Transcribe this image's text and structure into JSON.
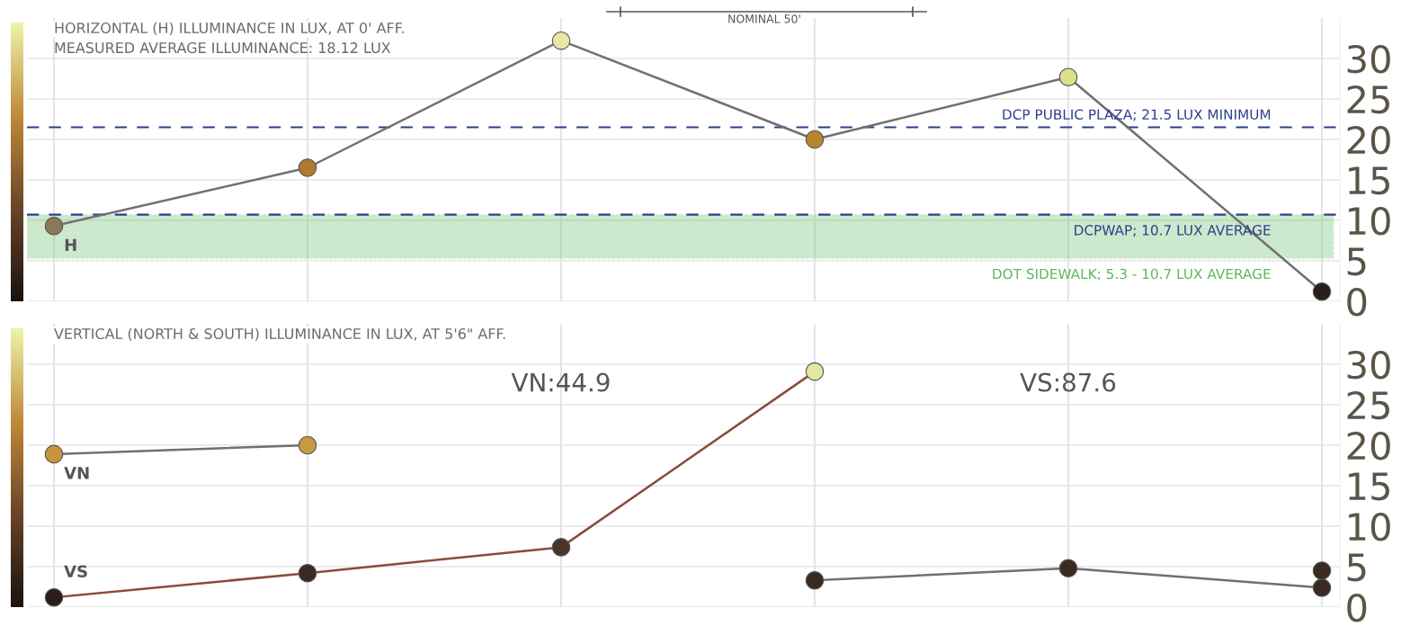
{
  "chart_data": [
    {
      "type": "line",
      "title": "HORIZONTAL (H) ILLUMINANCE IN LUX, AT 0' AFF.",
      "subtitle": "MEASURED AVERAGE ILLUMINANCE: 18.12 LUX",
      "categories": [
        null,
        null,
        null,
        null,
        null,
        null
      ],
      "series": [
        {
          "name": "H",
          "color": "#707070",
          "colors": [
            "#8a7a5a",
            "#b07a30",
            "#e4e8a0",
            "#b8862e",
            "#dde08a",
            "#2a1f1a"
          ],
          "values": [
            9.3,
            16.5,
            32.2,
            20.0,
            27.7,
            1.2
          ]
        }
      ],
      "ylim": [
        0,
        35
      ],
      "yticks": [
        0,
        5,
        10,
        15,
        20,
        25,
        30
      ],
      "grid": true,
      "marker": "circle",
      "line_style": "solid",
      "tick_labels": "y",
      "ref_lines": [
        {
          "axis": "y",
          "value": 21.5,
          "label": "DCP PUBLIC PLAZA; 21.5 LUX MINIMUM",
          "color": "#2b3f8c",
          "line_style": "dashed"
        },
        {
          "axis": "y",
          "value": 10.7,
          "label": "DCPWAP; 10.7 LUX AVERAGE",
          "color": "#2b3f8c",
          "line_style": "dashed"
        }
      ],
      "bands": [
        {
          "axis": "y",
          "from": 5.3,
          "to": 10.7,
          "label": "DOT SIDEWALK; 5.3 - 10.7 LUX AVERAGE",
          "color": "#5cb85c"
        }
      ],
      "annotations": [
        "NOMINAL 50'"
      ]
    },
    {
      "type": "line",
      "title": "VERTICAL (NORTH & SOUTH) ILLUMINANCE IN LUX, AT 5'6\" AFF.",
      "categories": [
        null,
        null,
        null,
        null,
        null,
        null
      ],
      "series": [
        {
          "name": "VN",
          "color": "#707070",
          "colors": [
            "#c8963a",
            "#c89a40",
            null,
            "#3a2a22",
            "#3a2a22",
            "#3a2a22"
          ],
          "values": [
            18.9,
            20.0,
            null,
            3.3,
            4.8,
            2.4
          ]
        },
        {
          "name": "VS",
          "color": "#8b4a3c",
          "colors": [
            "#2a1e1a",
            "#3a2a22",
            "#4a3428",
            "#e4e8a0",
            null,
            "#3a2a22"
          ],
          "values": [
            1.2,
            4.2,
            7.4,
            29.1,
            null,
            4.5
          ]
        }
      ],
      "ylim": [
        0,
        35
      ],
      "yticks": [
        0,
        5,
        10,
        15,
        20,
        25,
        30
      ],
      "grid": true,
      "marker": "circle",
      "line_style": "solid",
      "tick_labels": "y",
      "annotations": [
        "VN:44.9",
        "VS:87.6"
      ]
    }
  ]
}
